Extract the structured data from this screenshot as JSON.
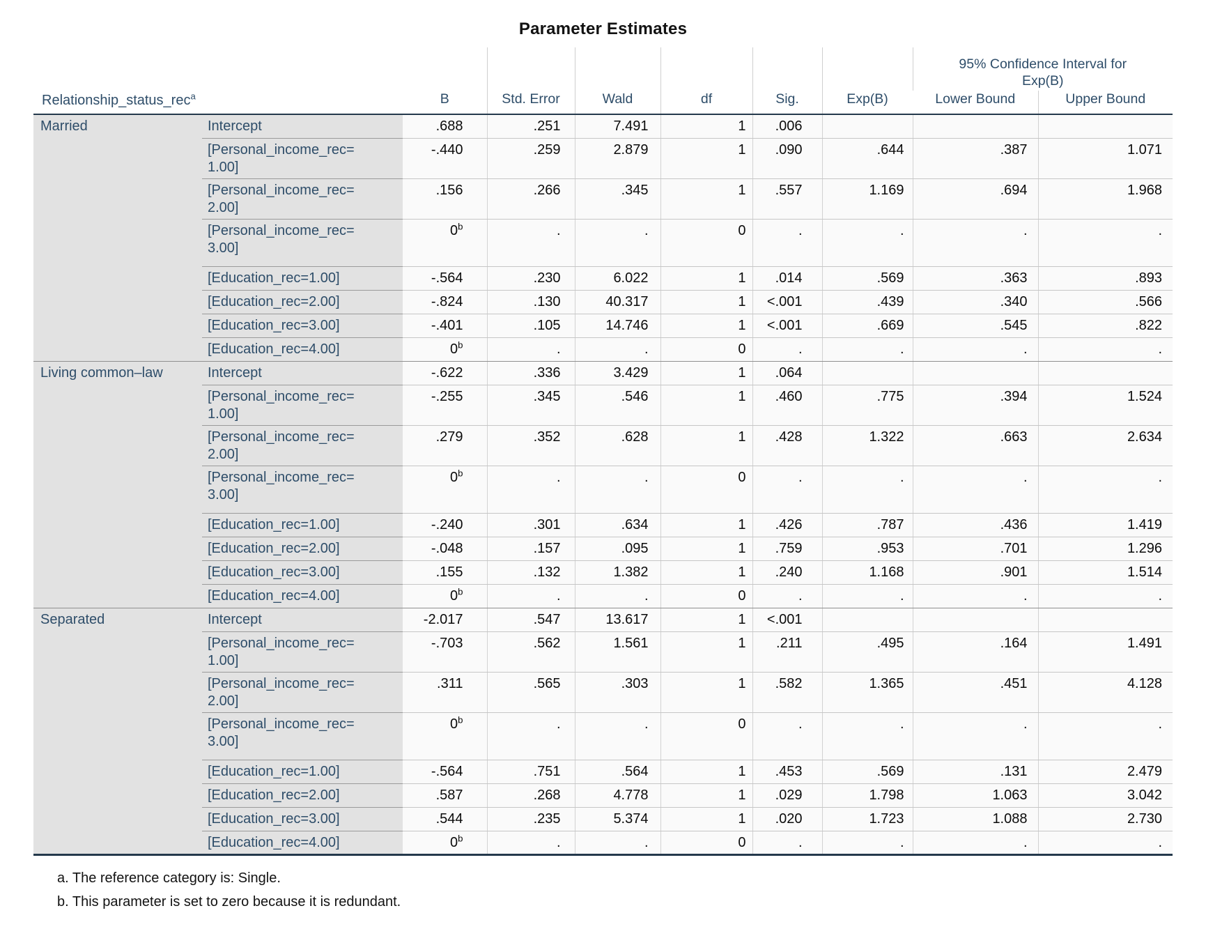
{
  "title": "Parameter Estimates",
  "table": {
    "row_header": "Relationship_status_rec^a",
    "columns": [
      "B",
      "Std. Error",
      "Wald",
      "df",
      "Sig.",
      "Exp(B)"
    ],
    "ci_header": "95% Confidence Interval for Exp(B)",
    "ci_sub_columns": [
      "Lower Bound",
      "Upper Bound"
    ],
    "sections": [
      {
        "group": "Married",
        "rows": [
          {
            "label": "Intercept",
            "cells": [
              ".688",
              ".251",
              "7.491",
              "1",
              ".006",
              "",
              "",
              ""
            ]
          },
          {
            "label": "[Personal_income_rec=1.00]",
            "cells": [
              "-.440",
              ".259",
              "2.879",
              "1",
              ".090",
              ".644",
              ".387",
              "1.071"
            ]
          },
          {
            "label": "[Personal_income_rec=2.00]",
            "cells": [
              ".156",
              ".266",
              ".345",
              "1",
              ".557",
              "1.169",
              ".694",
              "1.968"
            ]
          },
          {
            "label": "[Personal_income_rec=3.00]",
            "cells": [
              "0^b",
              ".",
              ".",
              "0",
              ".",
              ".",
              ".",
              "."
            ]
          },
          {
            "label": "[Education_rec=1.00]",
            "cells": [
              "-.564",
              ".230",
              "6.022",
              "1",
              ".014",
              ".569",
              ".363",
              ".893"
            ]
          },
          {
            "label": "[Education_rec=2.00]",
            "cells": [
              "-.824",
              ".130",
              "40.317",
              "1",
              "<.001",
              ".439",
              ".340",
              ".566"
            ]
          },
          {
            "label": "[Education_rec=3.00]",
            "cells": [
              "-.401",
              ".105",
              "14.746",
              "1",
              "<.001",
              ".669",
              ".545",
              ".822"
            ]
          },
          {
            "label": "[Education_rec=4.00]",
            "cells": [
              "0^b",
              ".",
              ".",
              "0",
              ".",
              ".",
              ".",
              "."
            ]
          }
        ]
      },
      {
        "group": "Living common–law",
        "rows": [
          {
            "label": "Intercept",
            "cells": [
              "-.622",
              ".336",
              "3.429",
              "1",
              ".064",
              "",
              "",
              ""
            ]
          },
          {
            "label": "[Personal_income_rec=1.00]",
            "cells": [
              "-.255",
              ".345",
              ".546",
              "1",
              ".460",
              ".775",
              ".394",
              "1.524"
            ]
          },
          {
            "label": "[Personal_income_rec=2.00]",
            "cells": [
              ".279",
              ".352",
              ".628",
              "1",
              ".428",
              "1.322",
              ".663",
              "2.634"
            ]
          },
          {
            "label": "[Personal_income_rec=3.00]",
            "cells": [
              "0^b",
              ".",
              ".",
              "0",
              ".",
              ".",
              ".",
              "."
            ]
          },
          {
            "label": "[Education_rec=1.00]",
            "cells": [
              "-.240",
              ".301",
              ".634",
              "1",
              ".426",
              ".787",
              ".436",
              "1.419"
            ]
          },
          {
            "label": "[Education_rec=2.00]",
            "cells": [
              "-.048",
              ".157",
              ".095",
              "1",
              ".759",
              ".953",
              ".701",
              "1.296"
            ]
          },
          {
            "label": "[Education_rec=3.00]",
            "cells": [
              ".155",
              ".132",
              "1.382",
              "1",
              ".240",
              "1.168",
              ".901",
              "1.514"
            ]
          },
          {
            "label": "[Education_rec=4.00]",
            "cells": [
              "0^b",
              ".",
              ".",
              "0",
              ".",
              ".",
              ".",
              "."
            ]
          }
        ]
      },
      {
        "group": "Separated",
        "rows": [
          {
            "label": "Intercept",
            "cells": [
              "-2.017",
              ".547",
              "13.617",
              "1",
              "<.001",
              "",
              "",
              ""
            ]
          },
          {
            "label": "[Personal_income_rec=1.00]",
            "cells": [
              "-.703",
              ".562",
              "1.561",
              "1",
              ".211",
              ".495",
              ".164",
              "1.491"
            ]
          },
          {
            "label": "[Personal_income_rec=2.00]",
            "cells": [
              ".311",
              ".565",
              ".303",
              "1",
              ".582",
              "1.365",
              ".451",
              "4.128"
            ]
          },
          {
            "label": "[Personal_income_rec=3.00]",
            "cells": [
              "0^b",
              ".",
              ".",
              "0",
              ".",
              ".",
              ".",
              "."
            ]
          },
          {
            "label": "[Education_rec=1.00]",
            "cells": [
              "-.564",
              ".751",
              ".564",
              "1",
              ".453",
              ".569",
              ".131",
              "2.479"
            ]
          },
          {
            "label": "[Education_rec=2.00]",
            "cells": [
              ".587",
              ".268",
              "4.778",
              "1",
              ".029",
              "1.798",
              "1.063",
              "3.042"
            ]
          },
          {
            "label": "[Education_rec=3.00]",
            "cells": [
              ".544",
              ".235",
              "5.374",
              "1",
              ".020",
              "1.723",
              "1.088",
              "2.730"
            ]
          },
          {
            "label": "[Education_rec=4.00]",
            "cells": [
              "0^b",
              ".",
              ".",
              "0",
              ".",
              ".",
              ".",
              "."
            ]
          }
        ]
      }
    ]
  },
  "footnotes": [
    "a. The reference category is: Single.",
    "b. This parameter is set to zero because it is redundant."
  ],
  "colors": {
    "header_text": "#2e4d69",
    "label_background": "#e2e2e2",
    "body_background": "#fafafa",
    "dark_rule": "#24394c",
    "light_grid": "#c6c6c6"
  }
}
